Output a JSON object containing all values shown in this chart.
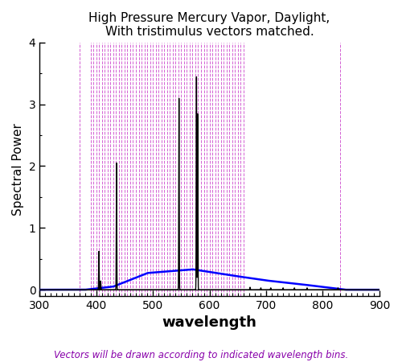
{
  "title": "High Pressure Mercury Vapor, Daylight,\nWith tristimulus vectors matched.",
  "xlabel": "wavelength",
  "ylabel": "Spectral Power",
  "xlim": [
    300,
    900
  ],
  "ylim": [
    -0.1,
    4.0
  ],
  "yticks": [
    0,
    1,
    2,
    3,
    4
  ],
  "xticks": [
    300,
    400,
    500,
    600,
    700,
    800,
    900
  ],
  "footer_text": "Vectors will be drawn according to indicated wavelength bins.",
  "footer_color": "#8800aa",
  "dashed_line_color": "#cc44cc",
  "mercury_color": "#000000",
  "daylight_color": "#0000ff",
  "hg_lines": {
    "404.7": 0.62,
    "407.8": 0.14,
    "435.8": 2.05,
    "546.1": 3.1,
    "577.0": 3.45,
    "579.1": 2.85
  },
  "hg_lines_small": {
    "671.6": 0.04,
    "690.7": 0.03,
    "708.2": 0.03,
    "730.0": 0.03,
    "750.0": 0.03,
    "772.4": 0.03,
    "827.0": 0.03
  },
  "dense_bins_start": 390,
  "dense_bins_end": 660,
  "dense_bin_step": 5,
  "sparse_bins": [
    370,
    660,
    830
  ],
  "background_color": "#ffffff"
}
